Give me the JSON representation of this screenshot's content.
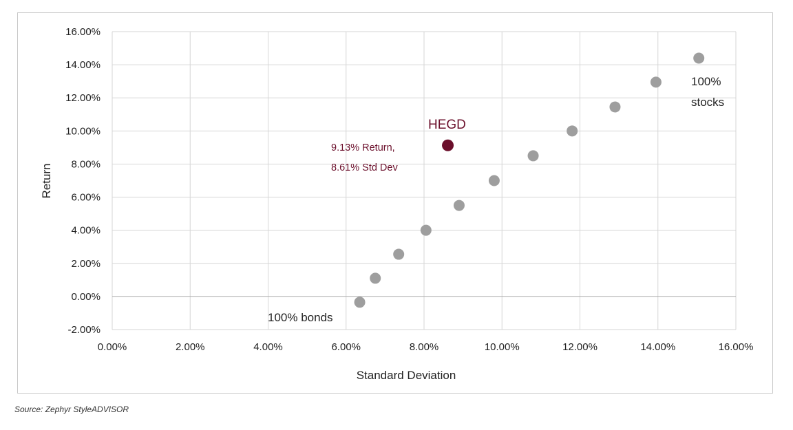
{
  "chart_data": {
    "type": "scatter",
    "xlabel": "Standard Deviation",
    "ylabel": "Return",
    "xlim": [
      0,
      16
    ],
    "ylim": [
      -2,
      16
    ],
    "x_ticks": [
      "0.00%",
      "2.00%",
      "4.00%",
      "6.00%",
      "8.00%",
      "10.00%",
      "12.00%",
      "14.00%",
      "16.00%"
    ],
    "y_ticks": [
      "-2.00%",
      "0.00%",
      "2.00%",
      "4.00%",
      "6.00%",
      "8.00%",
      "10.00%",
      "12.00%",
      "14.00%",
      "16.00%"
    ],
    "grid": true,
    "series": [
      {
        "color": "#9e9e9e",
        "points": [
          {
            "x": 6.35,
            "y": -0.35
          },
          {
            "x": 6.75,
            "y": 1.1
          },
          {
            "x": 7.35,
            "y": 2.55
          },
          {
            "x": 8.05,
            "y": 4.0
          },
          {
            "x": 8.9,
            "y": 5.5
          },
          {
            "x": 9.8,
            "y": 7.0
          },
          {
            "x": 10.8,
            "y": 8.5
          },
          {
            "x": 11.8,
            "y": 10.0
          },
          {
            "x": 12.9,
            "y": 11.45
          },
          {
            "x": 13.95,
            "y": 12.95
          },
          {
            "x": 15.05,
            "y": 14.4
          }
        ]
      },
      {
        "name": "HEGD",
        "color": "#6b0f2b",
        "points": [
          {
            "x": 8.61,
            "y": 9.13
          }
        ]
      }
    ],
    "annotations": {
      "bonds": "100% bonds",
      "stocks_line1": "100%",
      "stocks_line2": "stocks",
      "hegd_label": "HEGD",
      "hegd_note_line1": "9.13% Return,",
      "hegd_note_line2": "8.61% Std Dev"
    }
  },
  "source": "Source: Zephyr StyleADVISOR"
}
